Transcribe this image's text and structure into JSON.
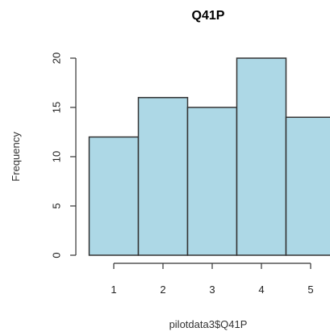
{
  "chart_data": {
    "type": "bar",
    "title": "Q41P",
    "xlabel": "pilotdata3$Q41P",
    "ylabel": "Frequency",
    "bins": [
      {
        "from": 0.5,
        "to": 1.5,
        "count": 12
      },
      {
        "from": 1.5,
        "to": 2.5,
        "count": 16
      },
      {
        "from": 2.5,
        "to": 3.5,
        "count": 15
      },
      {
        "from": 3.5,
        "to": 4.5,
        "count": 20
      },
      {
        "from": 4.5,
        "to": 5.5,
        "count": 14
      }
    ],
    "x_ticks": [
      1,
      2,
      3,
      4,
      5
    ],
    "x_tick_labels": [
      "1",
      "2",
      "3",
      "4",
      "5"
    ],
    "y_ticks": [
      0,
      5,
      10,
      15,
      20
    ],
    "y_tick_labels": [
      "0",
      "5",
      "10",
      "15",
      "20"
    ],
    "ylim": [
      0,
      20
    ],
    "grid": false,
    "colors": {
      "bar_fill": "#add8e6",
      "bar_stroke": "#333333"
    }
  }
}
